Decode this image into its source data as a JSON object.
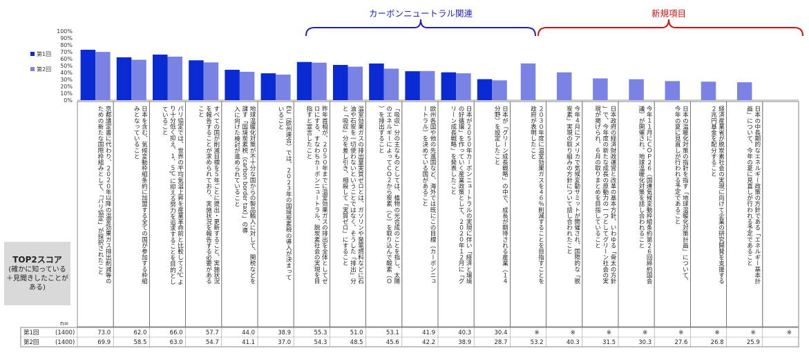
{
  "colors": {
    "series1": "#0a2ad4",
    "series2": "#7a83e3",
    "group_left": "#1f1fbf",
    "group_right": "#d01010"
  },
  "groups": {
    "left": {
      "label": "カーボンニュートラル関連",
      "color": "#1f1fbf"
    },
    "right": {
      "label": "新規項目",
      "color": "#d01010"
    }
  },
  "summary_box": {
    "title": "TOP2スコア",
    "note": "(確かに知っている＋見聞きしたことがある)"
  },
  "table": {
    "n_label": "n=",
    "rows": [
      {
        "label": "第1回",
        "n": "(1400)"
      },
      {
        "label": "第2回",
        "n": "(1400)"
      }
    ],
    "na_mark": "※"
  },
  "chart_data": {
    "type": "bar",
    "ylim": [
      0,
      100
    ],
    "yticks": [
      "100%",
      "90%",
      "80%",
      "70%",
      "60%",
      "50%",
      "40%",
      "30%",
      "20%",
      "10%",
      "0%"
    ],
    "legend_position": "top-left",
    "series": [
      {
        "name": "第1回",
        "values": [
          73.0,
          62.0,
          66.0,
          57.7,
          44.0,
          38.9,
          55.3,
          51.0,
          53.1,
          41.9,
          40.3,
          30.4,
          null,
          null,
          null,
          null,
          null,
          null,
          null,
          null
        ],
        "labels": [
          "73.0",
          "62.0",
          "66.0",
          "57.7",
          "44.0",
          "38.9",
          "55.3",
          "51.0",
          "53.1",
          "41.9",
          "40.3",
          "30.4",
          "※",
          "※",
          "※",
          "※",
          "※",
          "※",
          "※",
          "※"
        ]
      },
      {
        "name": "第2回",
        "values": [
          69.9,
          58.5,
          63.0,
          54.7,
          41.1,
          37.0,
          54.3,
          48.5,
          45.6,
          42.2,
          38.9,
          28.7,
          53.2,
          40.3,
          31.5,
          30.3,
          27.6,
          26.8,
          25.9,
          null
        ],
        "labels": [
          "69.9",
          "58.5",
          "63.0",
          "54.7",
          "41.1",
          "37.0",
          "54.3",
          "48.5",
          "45.6",
          "42.2",
          "38.9",
          "28.7",
          "53.2",
          "40.3",
          "31.5",
          "30.3",
          "27.6",
          "26.8",
          "25.9",
          ""
        ]
      }
    ],
    "categories": [
      "京都議定書に代わり、２０２０年以降の温室効果ガス排出削減等のための新たな国際枠組みとして、「パリ協定」が採択されたこと",
      "日本を含む、気候変動枠組条約に加盟する全ての国が参加する枠組みとなっていること",
      "パリ協定では、世界の平均気温上昇を産業革命前と比較して２℃より十分低く抑え、１．５℃に抑える努力を追求することを目的としていること",
      "すべての国が削減目標を５年ごとに提出・更新すること、実施状況を報告することが求められており、実施状況を報告する必要があること",
      "地球温暖化対策が不十分な国からの製品輸入に対して、関税などを課す「国境炭素税（carbon border tax）」の導入に向けた検討が進められていること",
      "EU（欧州連合）では、２０２３年の国境炭素税の導入が決まっていること",
      "昨年首相が、２０５０年までに温室効果ガスの排出を全体としてゼロにする、すなわちカーボンニュートラル、脱炭素社会の実現を目指すと宣言したこと",
      "温室効果ガスの排出量実質ゼロとは、ガソリンや発電燃料などに石油や石炭を一切使わないということではなく、そうした「排出」分と「吸収」分を差し引き、相殺して「実質ゼロ」にすること",
      "「吸収」分の主なものとしては、植物の光合成のことを指し、太陽のエネルギーによってＣＯ２から炭素（Ｃ）を取り込んで酸素（Ｏ）を排出すること",
      "欧州各国や他の先進国など、海外では既にこの目標（カーボンニュートラル）を決めている国があること",
      "日本が２０５０年カーボンニュートラルの実現に伴い「経済と環境の好循環」を作っていく産業政策として、２０２０年１２月に「グリーン成長戦略」を発表したこと",
      "日本が「グリーン成長戦略」の中で、成長が期待される産業（１４分野）を設定したこと",
      "２０３０年度に温室効果ガスを４６％削減することを目指すことを政府が表明したこと",
      "今年４月にアメリカで気候変動サミットが開催され、国際的な「脱炭素」実現の取り組みの方針について話し合われたこと",
      "日本政府の経済財政運営と改革の基本方針、いわゆる「骨太の方針」で、今年度の新たな成長の原動力の一つとしてグリーン社会の実現が掲げられ、６月の取りまとめを目指していること",
      "今年１１月にＣＯＰ２６（国連気候変動枠組条約第２６回締約国会議）が開催され、地球温暖化対策を話し合われること",
      "日本の温暖化対策の指針を指す「地球温暖化対策計画」について、今年の夏に見直しが行われる予定であること",
      "経済産業省が脱炭素社会の実現に向けて企業の研究開発を支援する２兆円基金を配分すること",
      "日本の中長期的なエネルギー政策の方針である「エネルギー基本計画」について、今年の夏に見直しが行われる予定であること",
      ""
    ]
  }
}
